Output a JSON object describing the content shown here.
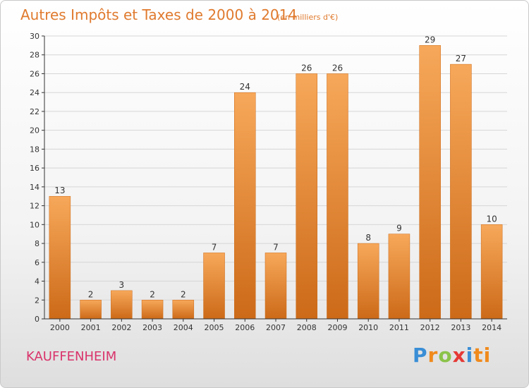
{
  "chart_data": {
    "type": "bar",
    "title": "Autres Impôts et Taxes de 2000 à 2014",
    "subtitle": "(en milliers d'€)",
    "categories": [
      "2000",
      "2001",
      "2002",
      "2003",
      "2004",
      "2005",
      "2006",
      "2007",
      "2008",
      "2009",
      "2010",
      "2011",
      "2012",
      "2013",
      "2014"
    ],
    "values": [
      13,
      2,
      3,
      2,
      2,
      7,
      24,
      7,
      26,
      26,
      8,
      9,
      29,
      27,
      10
    ],
    "ylim": [
      0,
      30
    ],
    "yticks": [
      0,
      2,
      4,
      6,
      8,
      10,
      12,
      14,
      16,
      18,
      20,
      22,
      24,
      26,
      28,
      30
    ],
    "grid": true,
    "xlabel": "",
    "ylabel": "",
    "bar_color": "#f08a2a",
    "bar_color_light": "#f7a85a",
    "bar_color_dark": "#cc6a18"
  },
  "footer": {
    "commune": "KAUFFENHEIM",
    "brand": [
      "P",
      "r",
      "o",
      "x",
      "i",
      "ti"
    ]
  }
}
